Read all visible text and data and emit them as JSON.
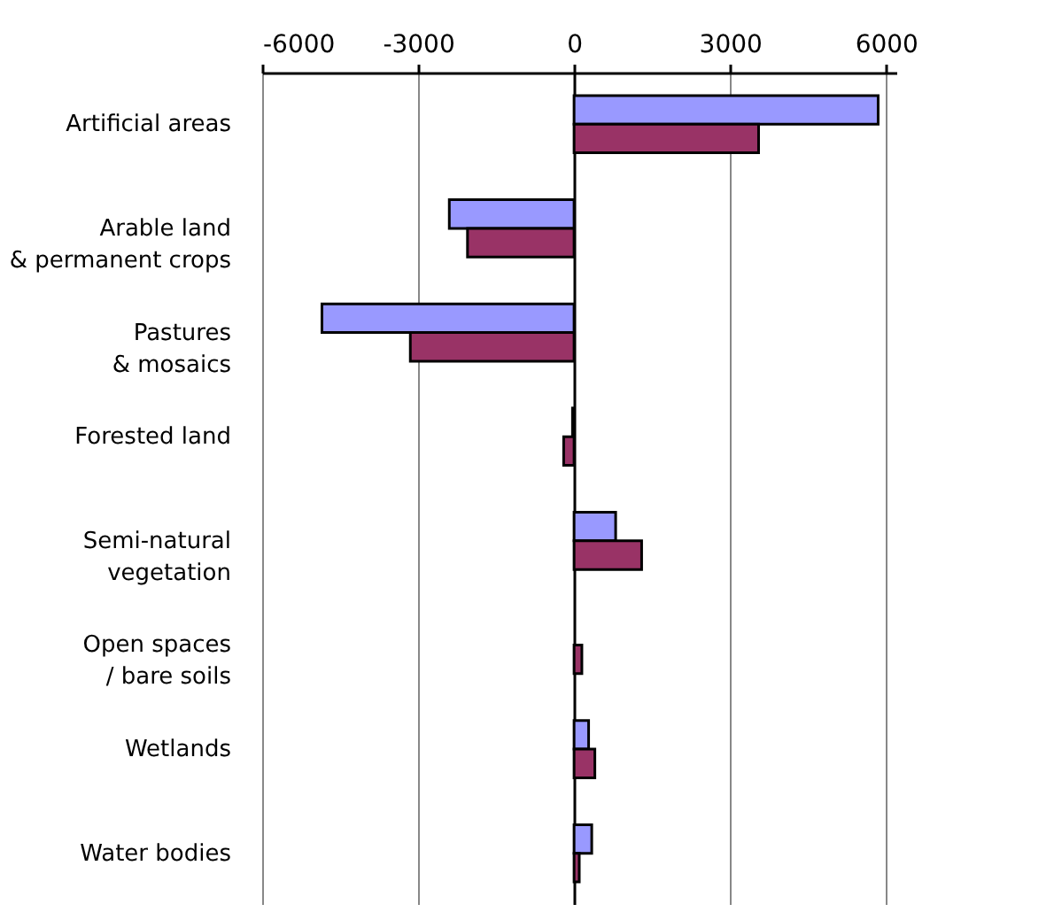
{
  "chart_data": {
    "type": "bar",
    "orientation": "horizontal",
    "categories": [
      "Artificial areas",
      "Arable land\n& permanent crops",
      "Pastures\n& mosaics",
      "Forested land",
      "Semi-natural\nvegetation",
      "Open spaces\n/ bare soils",
      "Wetlands",
      "Water bodies"
    ],
    "series": [
      {
        "color": "#9999ff",
        "values": [
          5850,
          -2400,
          -4850,
          -30,
          800,
          null,
          280,
          340
        ]
      },
      {
        "color": "#993366",
        "values": [
          3550,
          -2050,
          -3150,
          -200,
          1300,
          150,
          400,
          100
        ]
      }
    ],
    "xlim": [
      -6000,
      6200
    ],
    "xticks": [
      -6000,
      -3000,
      0,
      3000,
      6000
    ],
    "grid": "x",
    "legend": false
  }
}
